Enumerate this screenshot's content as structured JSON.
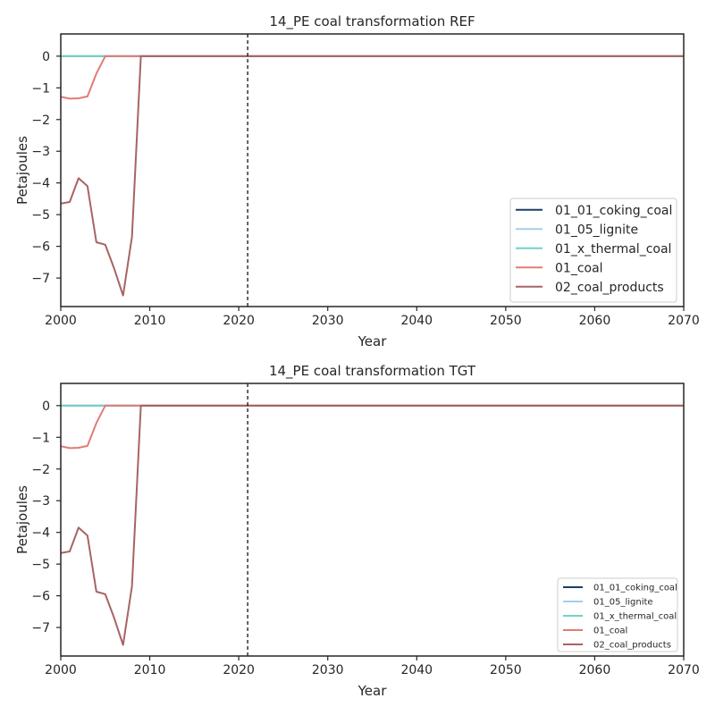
{
  "chart_data": [
    {
      "type": "line",
      "title": "14_PE coal transformation REF",
      "xlabel": "Year",
      "ylabel": "Petajoules",
      "xlim": [
        2000,
        2070
      ],
      "ylim": [
        -7.9,
        0.7
      ],
      "xticks": [
        2000,
        2010,
        2020,
        2030,
        2040,
        2050,
        2060,
        2070
      ],
      "yticks": [
        0,
        -1,
        -2,
        -3,
        -4,
        -5,
        -6,
        -7
      ],
      "ytick_labels": [
        "0",
        "−1",
        "−2",
        "−3",
        "−4",
        "−5",
        "−6",
        "−7"
      ],
      "vline_x": 2021,
      "grid": false,
      "legend_position": "lower right",
      "series": [
        {
          "name": "01_01_coking_coal",
          "color": "#1b3f63",
          "x": [
            2000,
            2070
          ],
          "y": [
            0,
            0
          ]
        },
        {
          "name": "01_05_lignite",
          "color": "#a6cdea",
          "x": [
            2000,
            2070
          ],
          "y": [
            0,
            0
          ]
        },
        {
          "name": "01_x_thermal_coal",
          "color": "#6fd4c6",
          "x": [
            2000,
            2070
          ],
          "y": [
            0,
            0
          ]
        },
        {
          "name": "01_coal",
          "color": "#e07c76",
          "x": [
            2000,
            2001,
            2002,
            2003,
            2004,
            2005,
            2006,
            2007,
            2008,
            2009,
            2010,
            2070
          ],
          "y": [
            -1.28,
            -1.34,
            -1.33,
            -1.27,
            -0.55,
            0,
            0,
            0,
            0,
            0,
            0,
            0
          ]
        },
        {
          "name": "02_coal_products",
          "color": "#a86363",
          "x": [
            2000,
            2001,
            2002,
            2003,
            2004,
            2005,
            2006,
            2007,
            2008,
            2009,
            2010,
            2070
          ],
          "y": [
            -4.65,
            -4.6,
            -3.85,
            -4.1,
            -5.87,
            -5.95,
            -6.7,
            -7.55,
            -5.7,
            0,
            0,
            0
          ]
        }
      ]
    },
    {
      "type": "line",
      "title": "14_PE coal transformation TGT",
      "xlabel": "Year",
      "ylabel": "Petajoules",
      "xlim": [
        2000,
        2070
      ],
      "ylim": [
        -7.9,
        0.7
      ],
      "xticks": [
        2000,
        2010,
        2020,
        2030,
        2040,
        2050,
        2060,
        2070
      ],
      "yticks": [
        0,
        -1,
        -2,
        -3,
        -4,
        -5,
        -6,
        -7
      ],
      "ytick_labels": [
        "0",
        "−1",
        "−2",
        "−3",
        "−4",
        "−5",
        "−6",
        "−7"
      ],
      "vline_x": 2021,
      "grid": false,
      "legend_position": "lower right",
      "series": [
        {
          "name": "01_01_coking_coal",
          "color": "#1b3f63",
          "x": [
            2000,
            2070
          ],
          "y": [
            0,
            0
          ]
        },
        {
          "name": "01_05_lignite",
          "color": "#a6cdea",
          "x": [
            2000,
            2070
          ],
          "y": [
            0,
            0
          ]
        },
        {
          "name": "01_x_thermal_coal",
          "color": "#6fd4c6",
          "x": [
            2000,
            2070
          ],
          "y": [
            0,
            0
          ]
        },
        {
          "name": "01_coal",
          "color": "#e07c76",
          "x": [
            2000,
            2001,
            2002,
            2003,
            2004,
            2005,
            2006,
            2007,
            2008,
            2009,
            2010,
            2070
          ],
          "y": [
            -1.28,
            -1.34,
            -1.33,
            -1.27,
            -0.55,
            0,
            0,
            0,
            0,
            0,
            0,
            0
          ]
        },
        {
          "name": "02_coal_products",
          "color": "#a86363",
          "x": [
            2000,
            2001,
            2002,
            2003,
            2004,
            2005,
            2006,
            2007,
            2008,
            2009,
            2010,
            2070
          ],
          "y": [
            -4.65,
            -4.6,
            -3.85,
            -4.1,
            -5.87,
            -5.95,
            -6.7,
            -7.55,
            -5.7,
            0,
            0,
            0
          ]
        }
      ]
    }
  ]
}
